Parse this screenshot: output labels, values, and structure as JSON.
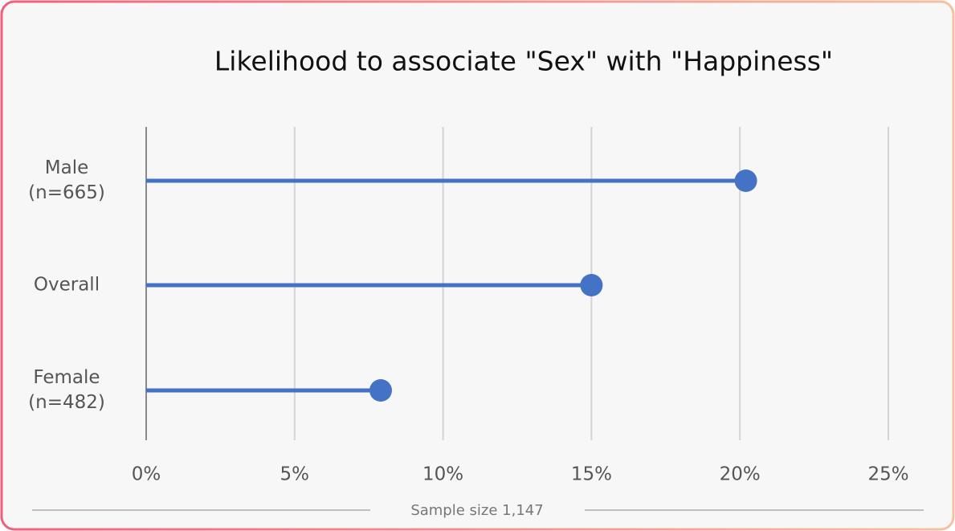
{
  "chart_data": {
    "type": "lollipop",
    "orientation": "horizontal",
    "title": "Likelihood to associate \"Sex\" with \"Happiness\"",
    "categories": [
      "Male\n(n=665)",
      "Overall",
      "Female\n(n=482)"
    ],
    "values": [
      20.2,
      15.0,
      7.9
    ],
    "color": "#4472c4",
    "xlim": [
      0,
      25
    ],
    "xticks": [
      {
        "value": 0,
        "label": "0%"
      },
      {
        "value": 5,
        "label": "5%"
      },
      {
        "value": 10,
        "label": "10%"
      },
      {
        "value": 15,
        "label": "15%"
      },
      {
        "value": 20,
        "label": "20%"
      },
      {
        "value": 25,
        "label": "25%"
      }
    ],
    "grid": true,
    "footnote": "Sample size 1,147"
  }
}
